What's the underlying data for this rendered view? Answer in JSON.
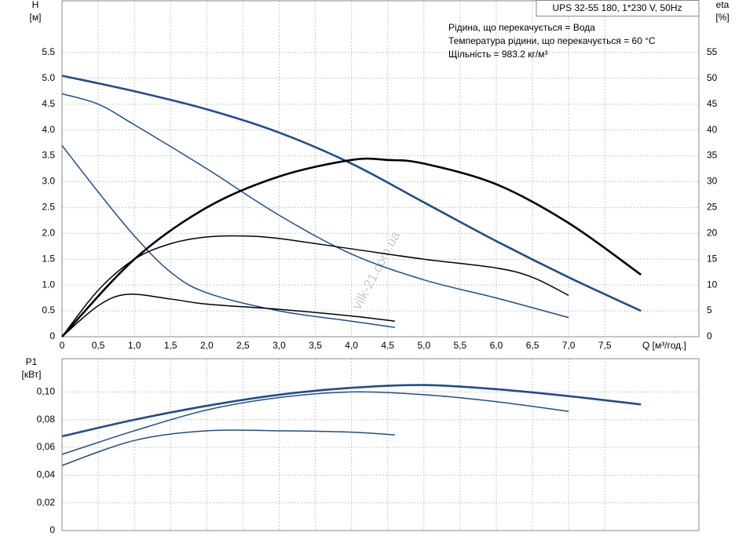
{
  "chart_data": [
    {
      "type": "line",
      "title": "UPS 32-55 180, 1*230 V, 50Hz",
      "annotations": [
        "Рідина, що перекачується = Вода",
        "Температура рідини, що перекачується = 60 °C",
        "Щільність = 983.2 кг/м³"
      ],
      "watermark": "vilk-21.com.ua",
      "y_label": [
        "H",
        "[м]"
      ],
      "y2_label": [
        "eta",
        "[%]"
      ],
      "x_label": "Q [м³/год.]",
      "grid": true,
      "xlim": [
        0,
        8.8
      ],
      "xticks": [
        0,
        {
          "value": 0.5,
          "label": "0,5"
        },
        {
          "value": 1,
          "label": "1,0"
        },
        {
          "value": 1.5,
          "label": "1,5"
        },
        {
          "value": 2,
          "label": "2,0"
        },
        {
          "value": 2.5,
          "label": "2,5"
        },
        {
          "value": 3,
          "label": "3,0"
        },
        {
          "value": 3.5,
          "label": "3,5"
        },
        {
          "value": 4,
          "label": "4,0"
        },
        {
          "value": 4.5,
          "label": "4,5"
        },
        {
          "value": 5,
          "label": "5,0"
        },
        {
          "value": 5.5,
          "label": "5,5"
        },
        {
          "value": 6,
          "label": "6,0"
        },
        {
          "value": 6.5,
          "label": "6,5"
        },
        {
          "value": 7,
          "label": "7,0"
        },
        {
          "value": 7.5,
          "label": "7,5"
        }
      ],
      "ylim": [
        0,
        6.5
      ],
      "yticks": [
        0,
        0.5,
        {
          "value": 1,
          "label": "1.0"
        },
        1.5,
        {
          "value": 2,
          "label": "2.0"
        },
        2.5,
        {
          "value": 3,
          "label": "3.0"
        },
        3.5,
        {
          "value": 4,
          "label": "4.0"
        },
        4.5,
        {
          "value": 5,
          "label": "5.0"
        },
        5.5
      ],
      "y2lim": [
        0,
        65
      ],
      "y2ticks": [
        0,
        5,
        10,
        15,
        20,
        25,
        30,
        35,
        40,
        45,
        50,
        55
      ],
      "series": [
        {
          "color": "#1f4e8c",
          "x": [
            0,
            1,
            2,
            3,
            4,
            5,
            6,
            7,
            8
          ],
          "values": [
            5.05,
            4.75,
            4.4,
            3.95,
            3.35,
            2.6,
            1.85,
            1.15,
            0.5
          ]
        },
        {
          "color": "#1f4e8c",
          "x": [
            0,
            0.5,
            1,
            2,
            3,
            4,
            5,
            6,
            7
          ],
          "values": [
            4.7,
            4.5,
            4.1,
            3.25,
            2.35,
            1.6,
            1.1,
            0.75,
            0.37
          ]
        },
        {
          "color": "#1f4e8c",
          "x": [
            0,
            0.5,
            1,
            1.5,
            2,
            3,
            4,
            4.6
          ],
          "values": [
            3.7,
            2.8,
            1.95,
            1.25,
            0.85,
            0.5,
            0.3,
            0.18
          ]
        },
        {
          "color": "#000000",
          "axis": "y2",
          "x": [
            0,
            1,
            2,
            3,
            4,
            4.5,
            5,
            6,
            7,
            8
          ],
          "values": [
            0,
            15,
            25,
            31,
            34.2,
            34.2,
            33.5,
            29.5,
            22,
            12
          ]
        },
        {
          "color": "#000000",
          "axis": "y2",
          "x": [
            0,
            0.5,
            1,
            1.5,
            2,
            2.5,
            3,
            4,
            5,
            6,
            6.5,
            7
          ],
          "values": [
            0,
            9,
            15,
            18,
            19.3,
            19.5,
            19,
            17,
            15,
            13.3,
            11.5,
            8
          ]
        },
        {
          "color": "#000000",
          "axis": "y2",
          "x": [
            0,
            0.5,
            0.9,
            1.5,
            2,
            3,
            4,
            4.6
          ],
          "values": [
            0,
            6,
            8.2,
            7.3,
            6.3,
            5.3,
            4,
            3
          ]
        }
      ]
    },
    {
      "type": "line",
      "y_label": [
        "P1",
        "[кВт]"
      ],
      "grid": true,
      "xlim": [
        0,
        8.8
      ],
      "ylim": [
        0,
        0.124
      ],
      "yticks": [
        0,
        {
          "value": 0.02,
          "label": "0,02"
        },
        {
          "value": 0.04,
          "label": "0,04"
        },
        {
          "value": 0.06,
          "label": "0,06"
        },
        {
          "value": 0.08,
          "label": "0,08"
        },
        {
          "value": 0.1,
          "label": "0,10"
        }
      ],
      "series": [
        {
          "color": "#1f4e8c",
          "x": [
            0,
            1,
            2,
            3,
            4,
            5,
            6,
            7,
            8
          ],
          "values": [
            0.068,
            0.08,
            0.09,
            0.098,
            0.103,
            0.105,
            0.102,
            0.097,
            0.091
          ]
        },
        {
          "color": "#1f4e8c",
          "x": [
            0,
            1,
            2,
            3,
            4,
            5,
            6,
            7
          ],
          "values": [
            0.055,
            0.072,
            0.087,
            0.096,
            0.1,
            0.098,
            0.093,
            0.086
          ]
        },
        {
          "color": "#1f4e8c",
          "x": [
            0,
            1,
            2,
            3,
            4,
            4.6
          ],
          "values": [
            0.047,
            0.065,
            0.072,
            0.072,
            0.071,
            0.069
          ]
        }
      ]
    }
  ]
}
